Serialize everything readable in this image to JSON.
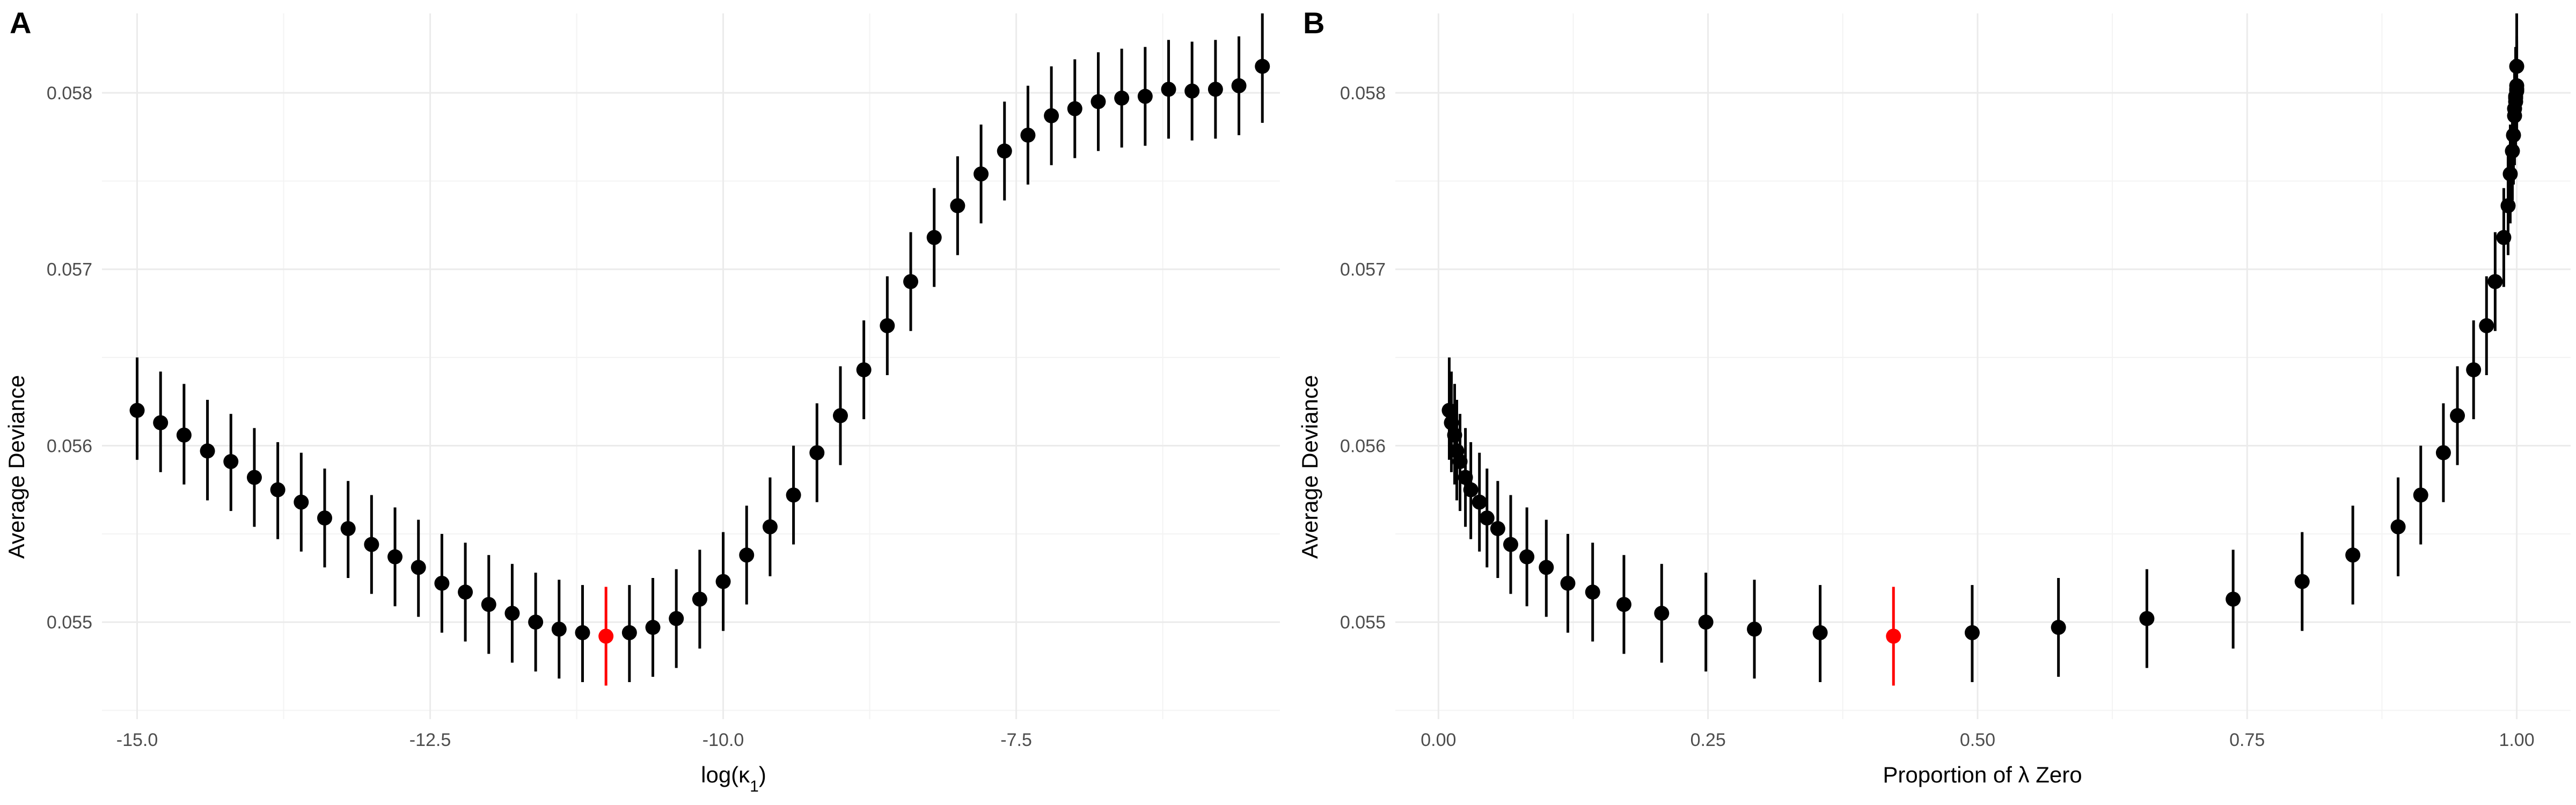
{
  "chart_data": [
    {
      "panel": "A",
      "type": "scatter",
      "xlabel": "log(κ",
      "xlabel_sub": "1",
      "xlabel_close": ")",
      "ylabel": "Average Deviance",
      "xlim": [
        -15.3,
        -5.25
      ],
      "ylim": [
        0.05445,
        0.05845
      ],
      "x_ticks": [
        -15.0,
        -12.5,
        -10.0,
        -7.5
      ],
      "x_tick_labels": [
        "-15.0",
        "-12.5",
        "-10.0",
        "-7.5"
      ],
      "y_ticks": [
        0.055,
        0.056,
        0.057,
        0.058
      ],
      "y_tick_labels": [
        "0.055",
        "0.056",
        "0.057",
        "0.058"
      ],
      "highlight_color": "#ff0000",
      "point_color": "#000000",
      "points": [
        {
          "x": -15.0,
          "y": 0.0562,
          "lo": 0.05592,
          "hi": 0.0565
        },
        {
          "x": -14.8,
          "y": 0.05613,
          "lo": 0.05585,
          "hi": 0.05642
        },
        {
          "x": -14.6,
          "y": 0.05606,
          "lo": 0.05578,
          "hi": 0.05635
        },
        {
          "x": -14.4,
          "y": 0.05597,
          "lo": 0.05569,
          "hi": 0.05626
        },
        {
          "x": -14.2,
          "y": 0.05591,
          "lo": 0.05563,
          "hi": 0.05618
        },
        {
          "x": -14.0,
          "y": 0.05582,
          "lo": 0.05554,
          "hi": 0.0561
        },
        {
          "x": -13.8,
          "y": 0.05575,
          "lo": 0.05547,
          "hi": 0.05602
        },
        {
          "x": -13.6,
          "y": 0.05568,
          "lo": 0.0554,
          "hi": 0.05596
        },
        {
          "x": -13.4,
          "y": 0.05559,
          "lo": 0.05531,
          "hi": 0.05587
        },
        {
          "x": -13.2,
          "y": 0.05553,
          "lo": 0.05525,
          "hi": 0.0558
        },
        {
          "x": -13.0,
          "y": 0.05544,
          "lo": 0.05516,
          "hi": 0.05572
        },
        {
          "x": -12.8,
          "y": 0.05537,
          "lo": 0.05509,
          "hi": 0.05565
        },
        {
          "x": -12.6,
          "y": 0.05531,
          "lo": 0.05503,
          "hi": 0.05558
        },
        {
          "x": -12.4,
          "y": 0.05522,
          "lo": 0.05494,
          "hi": 0.0555
        },
        {
          "x": -12.2,
          "y": 0.05517,
          "lo": 0.05489,
          "hi": 0.05545
        },
        {
          "x": -12.0,
          "y": 0.0551,
          "lo": 0.05482,
          "hi": 0.05538
        },
        {
          "x": -11.8,
          "y": 0.05505,
          "lo": 0.05477,
          "hi": 0.05533
        },
        {
          "x": -11.6,
          "y": 0.055,
          "lo": 0.05472,
          "hi": 0.05528
        },
        {
          "x": -11.4,
          "y": 0.05496,
          "lo": 0.05468,
          "hi": 0.05524
        },
        {
          "x": -11.2,
          "y": 0.05494,
          "lo": 0.05466,
          "hi": 0.05521
        },
        {
          "x": -11.0,
          "y": 0.05492,
          "lo": 0.05464,
          "hi": 0.0552,
          "highlight": true
        },
        {
          "x": -10.8,
          "y": 0.05494,
          "lo": 0.05466,
          "hi": 0.05521
        },
        {
          "x": -10.6,
          "y": 0.05497,
          "lo": 0.05469,
          "hi": 0.05525
        },
        {
          "x": -10.4,
          "y": 0.05502,
          "lo": 0.05474,
          "hi": 0.0553
        },
        {
          "x": -10.2,
          "y": 0.05513,
          "lo": 0.05485,
          "hi": 0.05541
        },
        {
          "x": -10.0,
          "y": 0.05523,
          "lo": 0.05495,
          "hi": 0.05551
        },
        {
          "x": -9.8,
          "y": 0.05538,
          "lo": 0.0551,
          "hi": 0.05566
        },
        {
          "x": -9.6,
          "y": 0.05554,
          "lo": 0.05526,
          "hi": 0.05582
        },
        {
          "x": -9.4,
          "y": 0.05572,
          "lo": 0.05544,
          "hi": 0.056
        },
        {
          "x": -9.2,
          "y": 0.05596,
          "lo": 0.05568,
          "hi": 0.05624
        },
        {
          "x": -9.0,
          "y": 0.05617,
          "lo": 0.05589,
          "hi": 0.05645
        },
        {
          "x": -8.8,
          "y": 0.05643,
          "lo": 0.05615,
          "hi": 0.05671
        },
        {
          "x": -8.6,
          "y": 0.05668,
          "lo": 0.0564,
          "hi": 0.05696
        },
        {
          "x": -8.4,
          "y": 0.05693,
          "lo": 0.05665,
          "hi": 0.05721
        },
        {
          "x": -8.2,
          "y": 0.05718,
          "lo": 0.0569,
          "hi": 0.05746
        },
        {
          "x": -8.0,
          "y": 0.05736,
          "lo": 0.05708,
          "hi": 0.05764
        },
        {
          "x": -7.8,
          "y": 0.05754,
          "lo": 0.05726,
          "hi": 0.05782
        },
        {
          "x": -7.6,
          "y": 0.05767,
          "lo": 0.05739,
          "hi": 0.05795
        },
        {
          "x": -7.4,
          "y": 0.05776,
          "lo": 0.05748,
          "hi": 0.05804
        },
        {
          "x": -7.2,
          "y": 0.05787,
          "lo": 0.05759,
          "hi": 0.05815
        },
        {
          "x": -7.0,
          "y": 0.05791,
          "lo": 0.05763,
          "hi": 0.05819
        },
        {
          "x": -6.8,
          "y": 0.05795,
          "lo": 0.05767,
          "hi": 0.05823
        },
        {
          "x": -6.6,
          "y": 0.05797,
          "lo": 0.05769,
          "hi": 0.05825
        },
        {
          "x": -6.4,
          "y": 0.05798,
          "lo": 0.0577,
          "hi": 0.05826
        },
        {
          "x": -6.2,
          "y": 0.05802,
          "lo": 0.05774,
          "hi": 0.0583
        },
        {
          "x": -6.0,
          "y": 0.05801,
          "lo": 0.05773,
          "hi": 0.05829
        },
        {
          "x": -5.8,
          "y": 0.05802,
          "lo": 0.05774,
          "hi": 0.0583
        },
        {
          "x": -5.6,
          "y": 0.05804,
          "lo": 0.05776,
          "hi": 0.05832
        },
        {
          "x": -5.4,
          "y": 0.05815,
          "lo": 0.05783,
          "hi": 0.05845
        }
      ]
    },
    {
      "panel": "B",
      "type": "scatter",
      "xlabel": "Proportion of λ Zero",
      "ylabel": "Average Deviance",
      "xlim": [
        -0.04,
        1.05
      ],
      "ylim": [
        0.05445,
        0.05845
      ],
      "x_ticks": [
        0.0,
        0.25,
        0.5,
        0.75,
        1.0
      ],
      "x_tick_labels": [
        "0.00",
        "0.25",
        "0.50",
        "0.75",
        "1.00"
      ],
      "y_ticks": [
        0.055,
        0.056,
        0.057,
        0.058
      ],
      "y_tick_labels": [
        "0.055",
        "0.056",
        "0.057",
        "0.058"
      ],
      "highlight_color": "#ff0000",
      "point_color": "#000000",
      "points": [
        {
          "x": 0.01,
          "y": 0.0562,
          "lo": 0.05592,
          "hi": 0.0565
        },
        {
          "x": 0.012,
          "y": 0.05613,
          "lo": 0.05585,
          "hi": 0.05642
        },
        {
          "x": 0.015,
          "y": 0.05606,
          "lo": 0.05578,
          "hi": 0.05635
        },
        {
          "x": 0.017,
          "y": 0.05597,
          "lo": 0.05569,
          "hi": 0.05626
        },
        {
          "x": 0.02,
          "y": 0.05591,
          "lo": 0.05563,
          "hi": 0.05618
        },
        {
          "x": 0.025,
          "y": 0.05582,
          "lo": 0.05554,
          "hi": 0.0561
        },
        {
          "x": 0.03,
          "y": 0.05575,
          "lo": 0.05547,
          "hi": 0.05602
        },
        {
          "x": 0.038,
          "y": 0.05568,
          "lo": 0.0554,
          "hi": 0.05596
        },
        {
          "x": 0.045,
          "y": 0.05559,
          "lo": 0.05531,
          "hi": 0.05587
        },
        {
          "x": 0.055,
          "y": 0.05553,
          "lo": 0.05525,
          "hi": 0.0558
        },
        {
          "x": 0.067,
          "y": 0.05544,
          "lo": 0.05516,
          "hi": 0.05572
        },
        {
          "x": 0.082,
          "y": 0.05537,
          "lo": 0.05509,
          "hi": 0.05565
        },
        {
          "x": 0.1,
          "y": 0.05531,
          "lo": 0.05503,
          "hi": 0.05558
        },
        {
          "x": 0.12,
          "y": 0.05522,
          "lo": 0.05494,
          "hi": 0.0555
        },
        {
          "x": 0.143,
          "y": 0.05517,
          "lo": 0.05489,
          "hi": 0.05545
        },
        {
          "x": 0.172,
          "y": 0.0551,
          "lo": 0.05482,
          "hi": 0.05538
        },
        {
          "x": 0.207,
          "y": 0.05505,
          "lo": 0.05477,
          "hi": 0.05533
        },
        {
          "x": 0.248,
          "y": 0.055,
          "lo": 0.05472,
          "hi": 0.05528
        },
        {
          "x": 0.293,
          "y": 0.05496,
          "lo": 0.05468,
          "hi": 0.05524
        },
        {
          "x": 0.354,
          "y": 0.05494,
          "lo": 0.05466,
          "hi": 0.05521
        },
        {
          "x": 0.422,
          "y": 0.05492,
          "lo": 0.05464,
          "hi": 0.0552,
          "highlight": true
        },
        {
          "x": 0.495,
          "y": 0.05494,
          "lo": 0.05466,
          "hi": 0.05521
        },
        {
          "x": 0.575,
          "y": 0.05497,
          "lo": 0.05469,
          "hi": 0.05525
        },
        {
          "x": 0.657,
          "y": 0.05502,
          "lo": 0.05474,
          "hi": 0.0553
        },
        {
          "x": 0.737,
          "y": 0.05513,
          "lo": 0.05485,
          "hi": 0.05541
        },
        {
          "x": 0.801,
          "y": 0.05523,
          "lo": 0.05495,
          "hi": 0.05551
        },
        {
          "x": 0.848,
          "y": 0.05538,
          "lo": 0.0551,
          "hi": 0.05566
        },
        {
          "x": 0.89,
          "y": 0.05554,
          "lo": 0.05526,
          "hi": 0.05582
        },
        {
          "x": 0.911,
          "y": 0.05572,
          "lo": 0.05544,
          "hi": 0.056
        },
        {
          "x": 0.932,
          "y": 0.05596,
          "lo": 0.05568,
          "hi": 0.05624
        },
        {
          "x": 0.945,
          "y": 0.05617,
          "lo": 0.05589,
          "hi": 0.05645
        },
        {
          "x": 0.96,
          "y": 0.05643,
          "lo": 0.05615,
          "hi": 0.05671
        },
        {
          "x": 0.972,
          "y": 0.05668,
          "lo": 0.0564,
          "hi": 0.05696
        },
        {
          "x": 0.98,
          "y": 0.05693,
          "lo": 0.05665,
          "hi": 0.05721
        },
        {
          "x": 0.988,
          "y": 0.05718,
          "lo": 0.0569,
          "hi": 0.05746
        },
        {
          "x": 0.992,
          "y": 0.05736,
          "lo": 0.05708,
          "hi": 0.05764
        },
        {
          "x": 0.994,
          "y": 0.05754,
          "lo": 0.05726,
          "hi": 0.05782
        },
        {
          "x": 0.996,
          "y": 0.05767,
          "lo": 0.05739,
          "hi": 0.05795
        },
        {
          "x": 0.997,
          "y": 0.05776,
          "lo": 0.05748,
          "hi": 0.05804
        },
        {
          "x": 0.998,
          "y": 0.05787,
          "lo": 0.05759,
          "hi": 0.05815
        },
        {
          "x": 0.998,
          "y": 0.05791,
          "lo": 0.05763,
          "hi": 0.05819
        },
        {
          "x": 0.999,
          "y": 0.05795,
          "lo": 0.05767,
          "hi": 0.05823
        },
        {
          "x": 0.999,
          "y": 0.05797,
          "lo": 0.05769,
          "hi": 0.05825
        },
        {
          "x": 0.999,
          "y": 0.05798,
          "lo": 0.0577,
          "hi": 0.05826
        },
        {
          "x": 1.0,
          "y": 0.05802,
          "lo": 0.05774,
          "hi": 0.0583
        },
        {
          "x": 1.0,
          "y": 0.05801,
          "lo": 0.05773,
          "hi": 0.05829
        },
        {
          "x": 1.0,
          "y": 0.05802,
          "lo": 0.05774,
          "hi": 0.0583
        },
        {
          "x": 1.0,
          "y": 0.05804,
          "lo": 0.05776,
          "hi": 0.05832
        },
        {
          "x": 1.0,
          "y": 0.05815,
          "lo": 0.05783,
          "hi": 0.05845
        }
      ]
    }
  ]
}
